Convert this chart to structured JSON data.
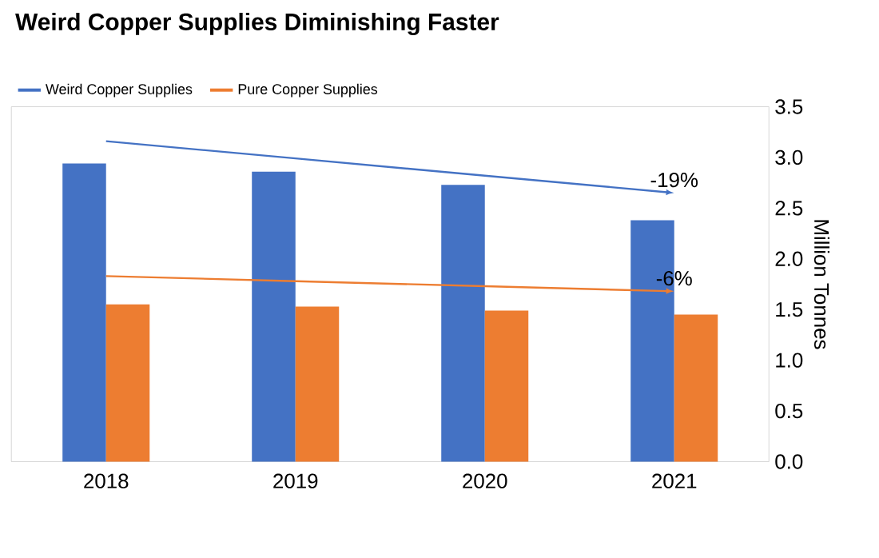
{
  "chart_data": {
    "type": "bar",
    "title": "Weird Copper Supplies Diminishing Faster",
    "ylabel": "Million Tonnes",
    "categories": [
      "2018",
      "2019",
      "2020",
      "2021"
    ],
    "series": [
      {
        "name": "Weird Copper Supplies",
        "color": "#4472c4",
        "values": [
          2.94,
          2.86,
          2.73,
          2.38
        ]
      },
      {
        "name": "Pure Copper Supplies",
        "color": "#ed7d31",
        "values": [
          1.55,
          1.53,
          1.49,
          1.45
        ]
      },
      {
        "type": "line",
        "color": "#4472c4",
        "values": [
          3.16,
          2.99,
          2.82,
          2.65
        ]
      },
      {
        "type": "line",
        "color": "#ed7d31",
        "values": [
          1.83,
          1.78,
          1.73,
          1.68
        ]
      }
    ],
    "ylim": [
      0,
      3.5
    ],
    "yticks": [
      {
        "value": 0,
        "label": "0.0"
      },
      {
        "value": 0.5,
        "label": "0.5"
      },
      {
        "value": 1,
        "label": "1.0"
      },
      {
        "value": 1.5,
        "label": "1.5"
      },
      {
        "value": 2,
        "label": "2.0"
      },
      {
        "value": 2.5,
        "label": "2.5"
      },
      {
        "value": 3,
        "label": "3.0"
      },
      {
        "value": 3.5,
        "label": "3.5"
      }
    ],
    "annotations": [
      "-19%",
      "-6%"
    ],
    "grid": false,
    "legend": "top left"
  }
}
